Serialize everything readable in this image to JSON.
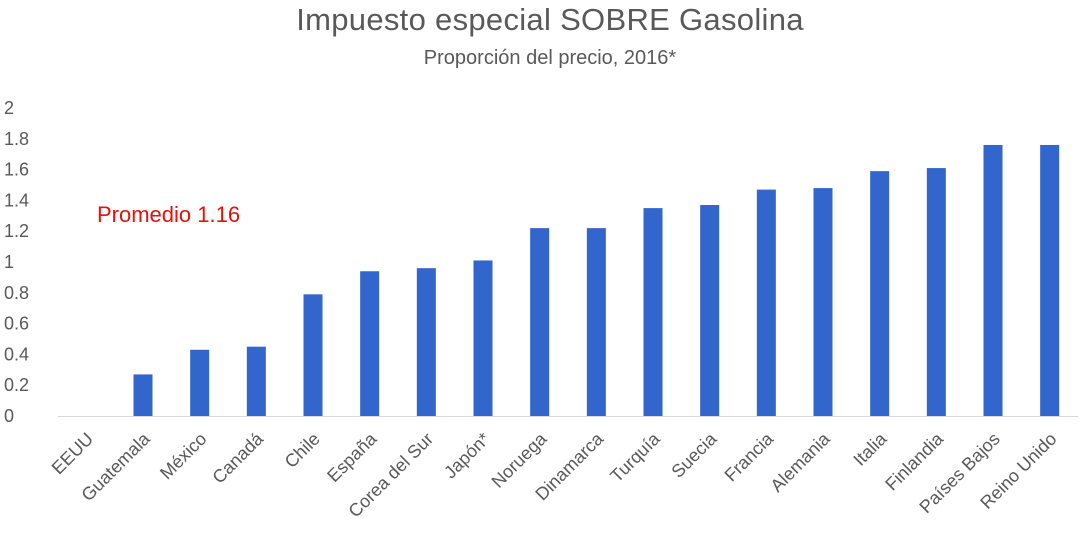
{
  "chart_data": {
    "type": "bar",
    "title": "Impuesto especial SOBRE Gasolina",
    "subtitle": "Proporción del precio, 2016*",
    "xlabel": "",
    "ylabel": "",
    "ylim": [
      0,
      2
    ],
    "yticks": [
      "0",
      "0.2",
      "0.4",
      "0.6",
      "0.8",
      "1",
      "1.2",
      "1.4",
      "1.6",
      "1.8",
      "2"
    ],
    "grid": false,
    "legend": "none",
    "annotation": "Promedio 1.16",
    "bar_color": "#3366cc",
    "annotation_color": "#e3120b",
    "categories": [
      "EEUU",
      "Guatemala",
      "México",
      "Canadá",
      "Chile",
      "España",
      "Corea del Sur",
      "Japón*",
      "Noruega",
      "Dinamarca",
      "Turquía",
      "Suecia",
      "Francia",
      "Alemania",
      "Italia",
      "Finlandia",
      "Países Bajos",
      "Reino Unido"
    ],
    "values": [
      0,
      0.27,
      0.43,
      0.45,
      0.79,
      0.94,
      0.96,
      1.01,
      1.22,
      1.22,
      1.35,
      1.37,
      1.47,
      1.48,
      1.59,
      1.61,
      1.76,
      1.76
    ]
  }
}
